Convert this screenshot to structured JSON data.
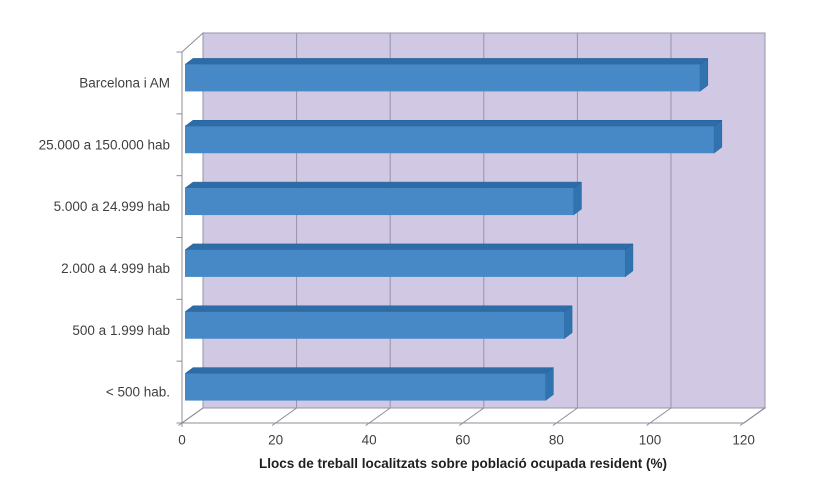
{
  "chart_data": {
    "type": "bar",
    "orientation": "horizontal",
    "style": "3d",
    "title": "",
    "xlabel": "Llocs de treball localitzats sobre població ocupada resident (%)",
    "ylabel": "",
    "categories": [
      "Barcelona i AM",
      "25.000 a 150.000 hab",
      "5.000 a 24.999 hab",
      "2.000 a 4.999 hab",
      "500 a 1.999 hab",
      "< 500 hab."
    ],
    "values": [
      110,
      113,
      83,
      94,
      81,
      77
    ],
    "xlim": [
      0,
      120
    ],
    "xticks": [
      0,
      20,
      40,
      60,
      80,
      100,
      120
    ],
    "grid": true,
    "legend": false,
    "colors": {
      "bar_front": "#4789c6",
      "bar_top": "#2d6ca7",
      "bar_side": "#3173ae",
      "bar_edge": "#255e97",
      "wall": "#d1c9e4",
      "gridline": "#9595a4",
      "axis_line": "#8c8c99",
      "panel": "#ffffff",
      "text": "#3f3f3f",
      "title_text": "#1f1f1f",
      "background": "#ffffff"
    }
  }
}
